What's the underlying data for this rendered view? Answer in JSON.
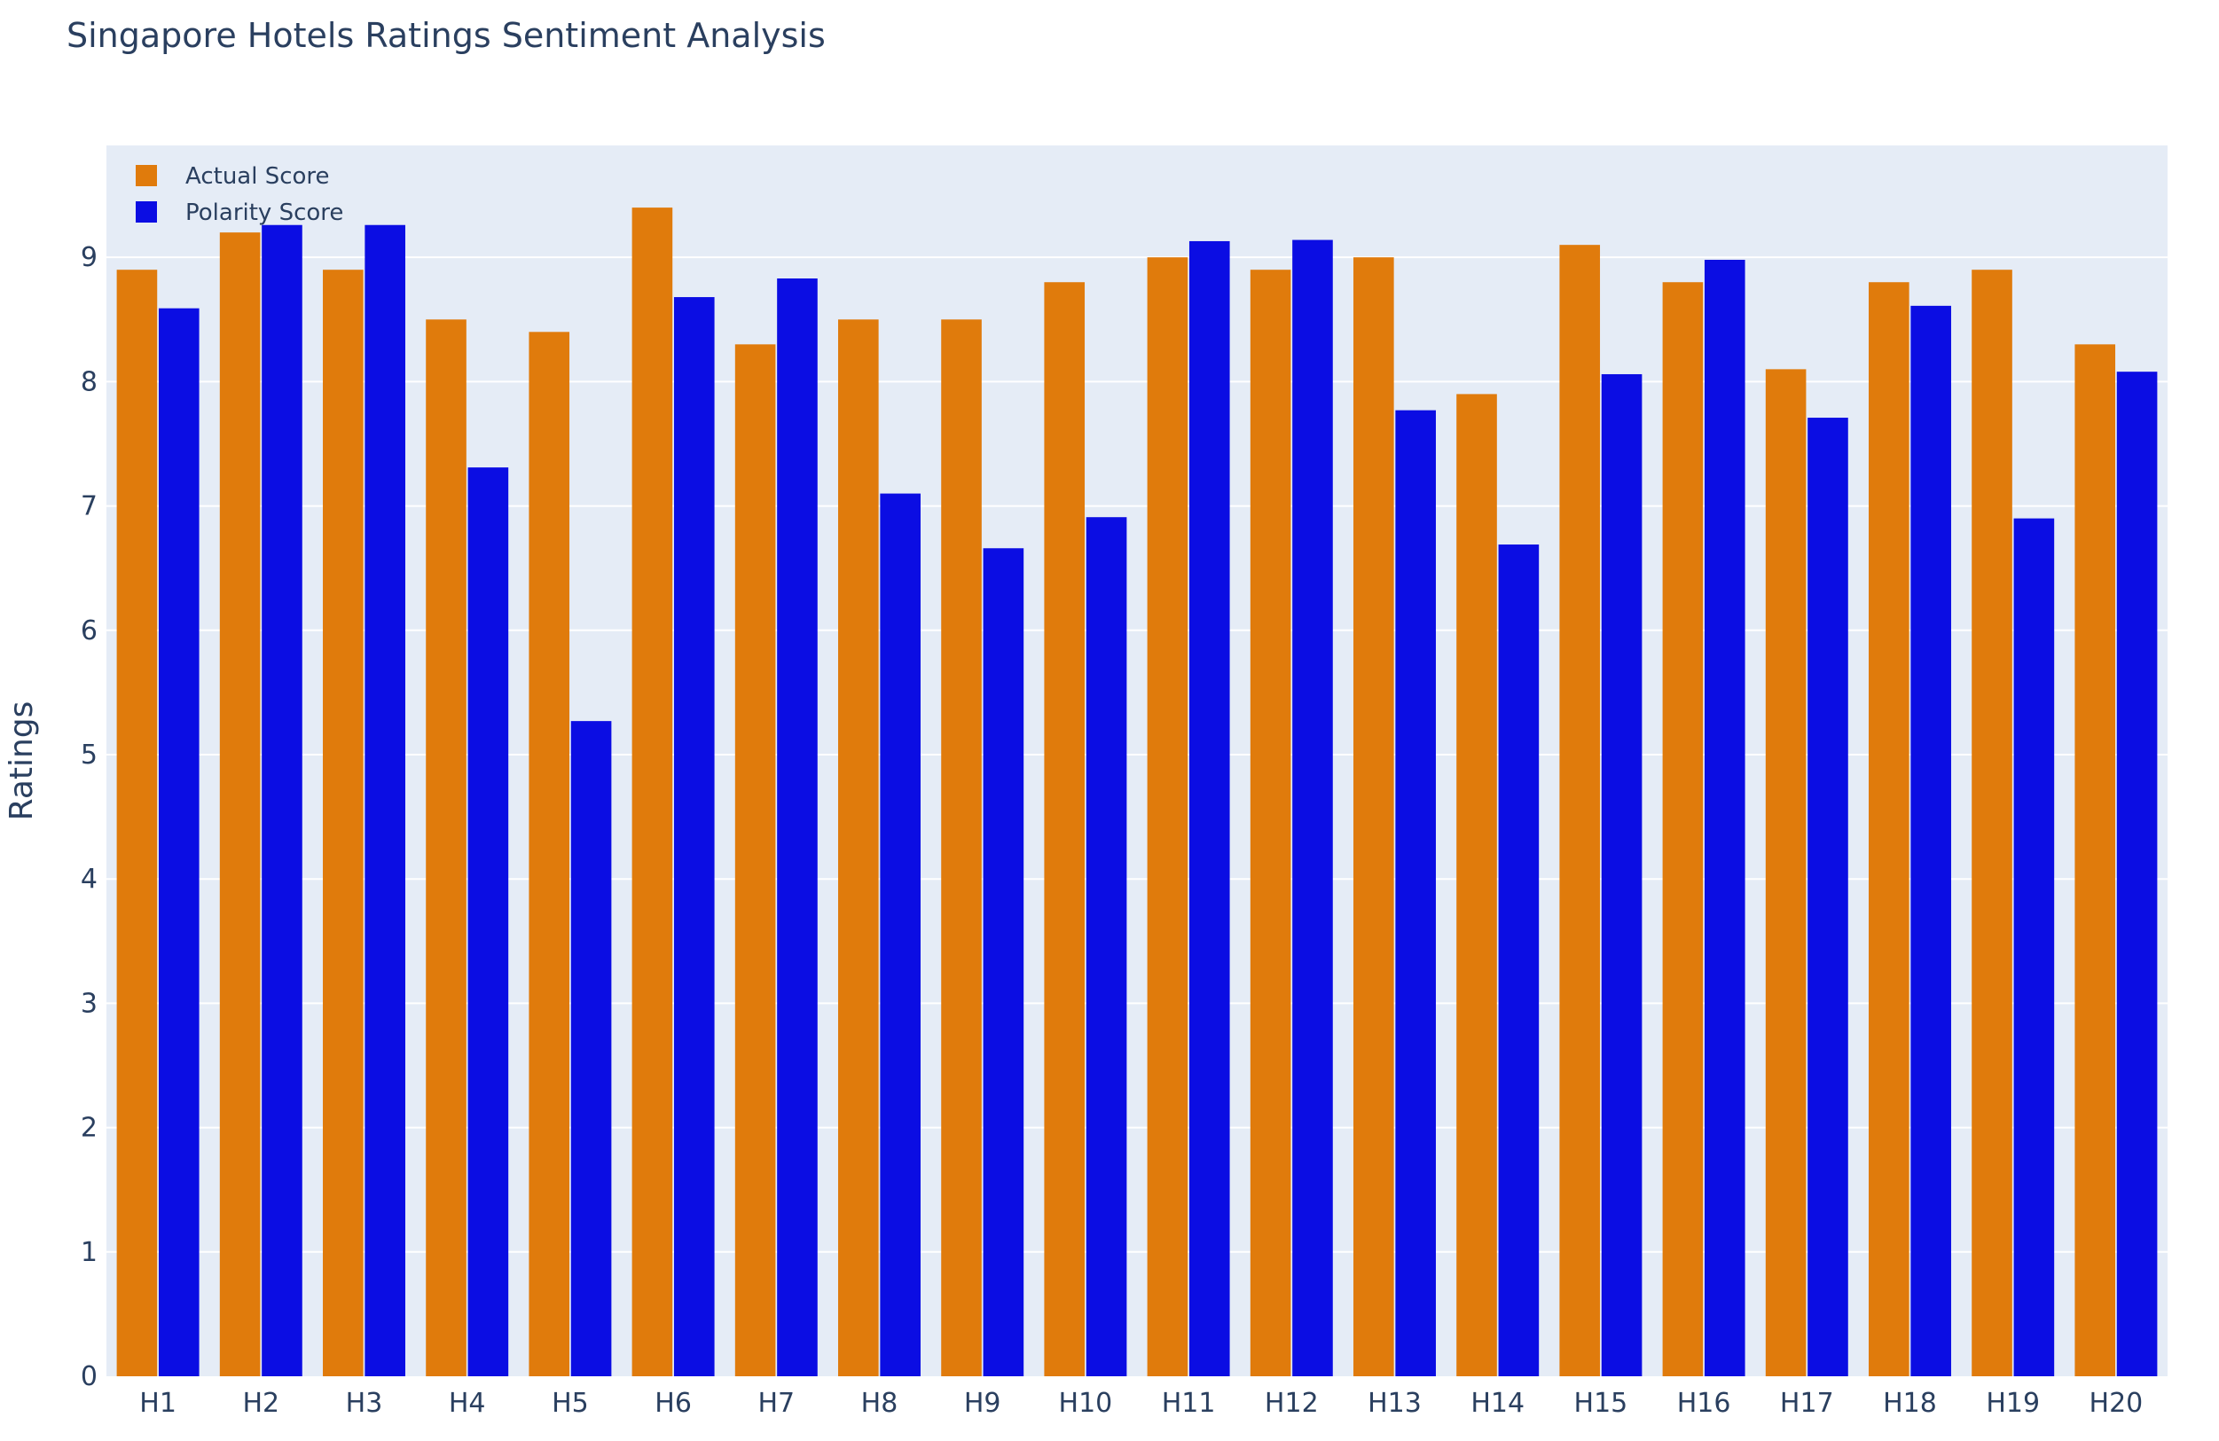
{
  "chart_data": {
    "type": "bar",
    "title": "Singapore Hotels Ratings Sentiment Analysis",
    "xlabel": "",
    "ylabel": "Ratings",
    "categories": [
      "H1",
      "H2",
      "H3",
      "H4",
      "H5",
      "H6",
      "H7",
      "H8",
      "H9",
      "H10",
      "H11",
      "H12",
      "H13",
      "H14",
      "H15",
      "H16",
      "H17",
      "H18",
      "H19",
      "H20"
    ],
    "series": [
      {
        "name": "Actual Score",
        "color": "#e07b0c",
        "values": [
          8.9,
          9.2,
          8.9,
          8.5,
          8.4,
          9.4,
          8.3,
          8.5,
          8.5,
          8.8,
          9.0,
          8.9,
          9.0,
          7.9,
          9.1,
          8.8,
          8.1,
          8.8,
          8.9,
          8.3
        ]
      },
      {
        "name": "Polarity Score",
        "color": "#0b0de3",
        "values": [
          8.59,
          9.26,
          9.26,
          7.31,
          5.27,
          8.68,
          8.83,
          7.1,
          6.66,
          6.91,
          9.13,
          9.14,
          7.77,
          6.69,
          8.06,
          8.98,
          7.71,
          8.61,
          6.9,
          8.08
        ]
      }
    ],
    "ylim": [
      0,
      9.9
    ],
    "yticks": [
      0,
      1,
      2,
      3,
      4,
      5,
      6,
      7,
      8,
      9
    ],
    "grid": true,
    "legend_position": "top-left",
    "plot_background": "#e5ecf6",
    "gridline_color": "#ffffff",
    "text_color": "#2a3f5f"
  }
}
